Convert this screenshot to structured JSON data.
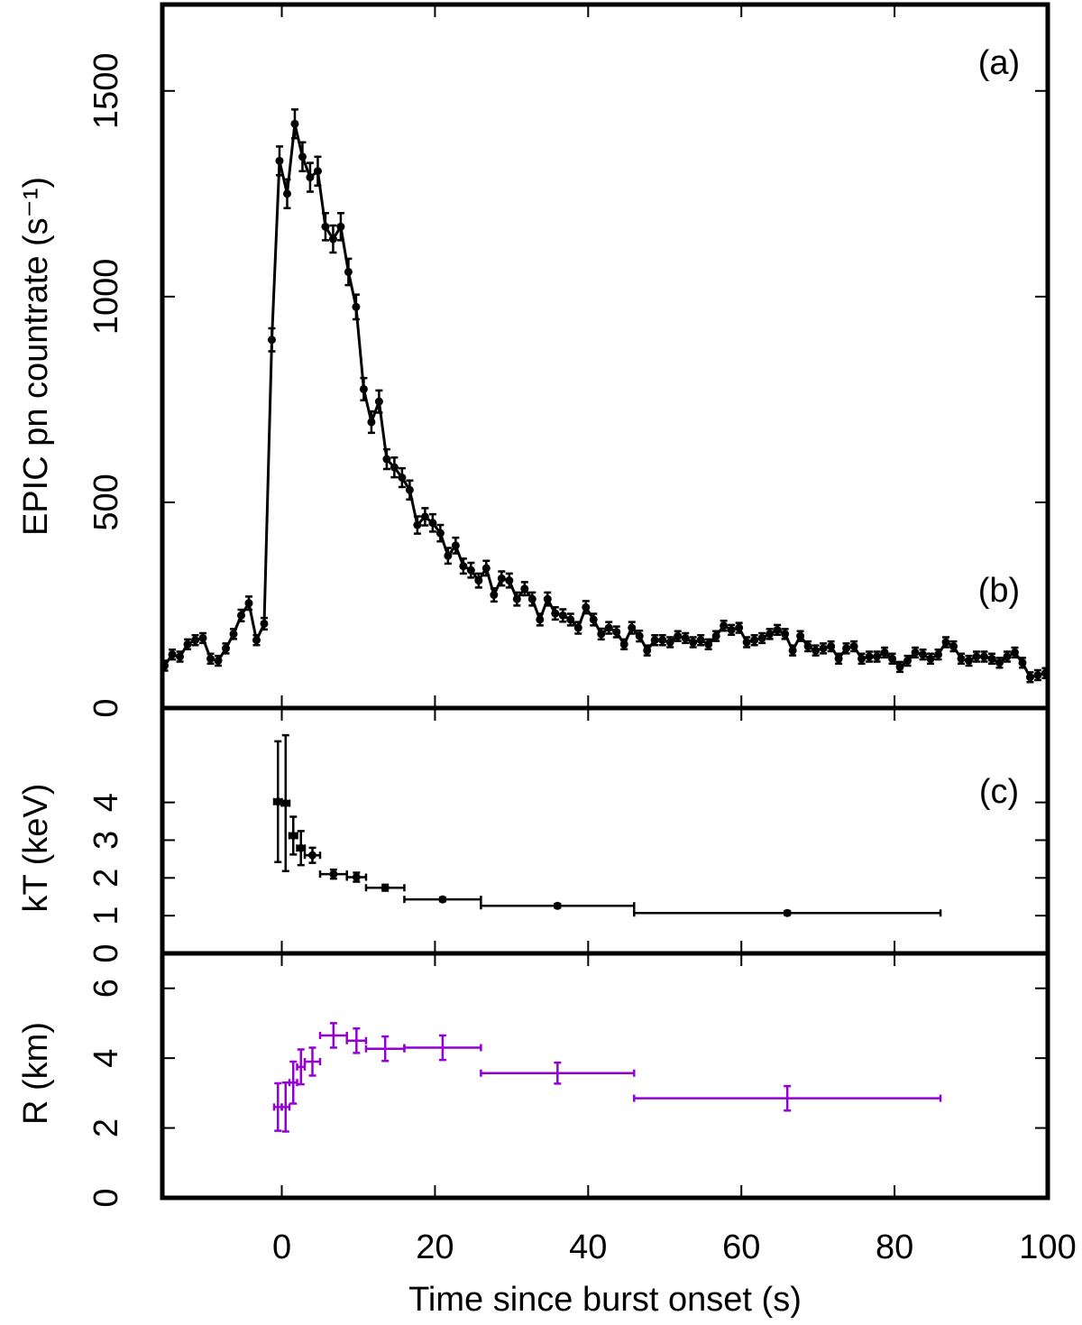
{
  "chart_data": [
    {
      "type": "line",
      "color": "#000000",
      "marker": "circle",
      "ylabel": "EPIC pn countrate (s⁻¹)",
      "annotations": [
        "(a)",
        "(b)"
      ],
      "xlim": [
        -15.6,
        100
      ],
      "xticks": [
        0,
        20,
        40,
        60,
        80,
        100
      ],
      "ylim": [
        0,
        1710
      ],
      "yticks": [
        0,
        500,
        1000,
        1500
      ],
      "x": [
        -15.3,
        -14.3,
        -13.3,
        -12.3,
        -11.3,
        -10.3,
        -9.3,
        -8.3,
        -7.3,
        -6.3,
        -5.3,
        -4.3,
        -3.3,
        -2.3,
        -1.3,
        -0.3,
        0.7,
        1.7,
        2.7,
        3.7,
        4.7,
        5.7,
        6.7,
        7.7,
        8.7,
        9.7,
        10.7,
        11.7,
        12.7,
        13.7,
        14.7,
        15.7,
        16.7,
        17.7,
        18.7,
        19.7,
        20.7,
        21.7,
        22.7,
        23.7,
        24.7,
        25.7,
        26.7,
        27.7,
        28.7,
        29.7,
        30.7,
        31.7,
        32.7,
        33.7,
        34.7,
        35.7,
        36.7,
        37.7,
        38.7,
        39.7,
        40.7,
        41.7,
        42.7,
        43.7,
        44.7,
        45.7,
        46.7,
        47.7,
        48.7,
        49.7,
        50.7,
        51.7,
        52.7,
        53.7,
        54.7,
        55.7,
        56.7,
        57.7,
        58.7,
        59.7,
        60.7,
        61.7,
        62.7,
        63.7,
        64.7,
        65.7,
        66.7,
        67.7,
        68.7,
        69.7,
        70.7,
        71.7,
        72.7,
        73.7,
        74.7,
        75.7,
        76.7,
        77.7,
        78.7,
        79.7,
        80.7,
        81.7,
        82.7,
        83.7,
        84.7,
        85.7,
        86.7,
        87.7,
        88.7,
        89.7,
        90.7,
        91.7,
        92.7,
        93.7,
        94.7,
        95.7,
        96.7,
        97.7,
        98.7,
        99.7
      ],
      "values": [
        103,
        130,
        125,
        155,
        165,
        170,
        120,
        115,
        145,
        180,
        225,
        255,
        165,
        205,
        895,
        1330,
        1250,
        1420,
        1340,
        1290,
        1305,
        1170,
        1140,
        1170,
        1060,
        975,
        775,
        695,
        745,
        605,
        585,
        560,
        530,
        445,
        465,
        450,
        425,
        370,
        395,
        345,
        335,
        310,
        340,
        275,
        315,
        310,
        265,
        290,
        265,
        215,
        265,
        230,
        225,
        215,
        195,
        245,
        215,
        180,
        195,
        185,
        155,
        195,
        175,
        140,
        165,
        165,
        160,
        175,
        170,
        160,
        165,
        155,
        175,
        200,
        190,
        195,
        160,
        165,
        170,
        180,
        190,
        180,
        140,
        175,
        150,
        140,
        145,
        150,
        120,
        145,
        150,
        120,
        125,
        125,
        135,
        120,
        100,
        115,
        135,
        130,
        120,
        130,
        160,
        150,
        120,
        115,
        125,
        125,
        120,
        110,
        125,
        135,
        110,
        75,
        80,
        85
      ],
      "errors": [
        12,
        12,
        12,
        12,
        12,
        12,
        12,
        12,
        12,
        12,
        14,
        16,
        12,
        14,
        28,
        35,
        35,
        35,
        35,
        35,
        35,
        33,
        33,
        33,
        32,
        30,
        27,
        26,
        27,
        24,
        24,
        23,
        23,
        21,
        21,
        21,
        20,
        19,
        19,
        18,
        18,
        17,
        18,
        16,
        17,
        17,
        16,
        16,
        16,
        14,
        16,
        15,
        15,
        14,
        14,
        15,
        14,
        13,
        14,
        13,
        12,
        14,
        13,
        12,
        12,
        12,
        12,
        12,
        12,
        12,
        12,
        12,
        12,
        12,
        12,
        12,
        12,
        12,
        12,
        12,
        12,
        12,
        12,
        12,
        12,
        12,
        12,
        12,
        12,
        12,
        12,
        12,
        12,
        12,
        12,
        12,
        12,
        12,
        12,
        12,
        12,
        12,
        12,
        12,
        12,
        12,
        12,
        12,
        12,
        12,
        12,
        12,
        12,
        12,
        12,
        12
      ]
    },
    {
      "type": "errorbar",
      "color": "#000000",
      "marker": "circle",
      "ylabel": "kT (keV)",
      "annotations": [
        "(c)"
      ],
      "xlim": [
        -15.6,
        100
      ],
      "xticks": [
        0,
        20,
        40,
        60,
        80,
        100
      ],
      "ylim": [
        0,
        6.5
      ],
      "yticks": [
        0,
        1,
        2,
        3,
        4
      ],
      "x": [
        -0.5,
        0.5,
        1.5,
        2.5,
        4,
        6.75,
        9.75,
        13.5,
        21,
        36,
        66
      ],
      "xerr": [
        0.5,
        0.5,
        0.5,
        0.5,
        1,
        1.75,
        1.25,
        2.5,
        5,
        10,
        20
      ],
      "values": [
        4.02,
        3.98,
        3.12,
        2.79,
        2.6,
        2.1,
        2.02,
        1.74,
        1.43,
        1.26,
        1.07
      ],
      "errors": [
        1.6,
        1.8,
        0.5,
        0.45,
        0.2,
        0.12,
        0.12,
        0.08,
        0.05,
        0.05,
        0.05
      ]
    },
    {
      "type": "errorbar",
      "color": "#9400d3",
      "marker": "none",
      "ylabel": "R (km)",
      "xlabel": "Time since burst onset (s)",
      "xlim": [
        -15.6,
        100
      ],
      "xticks": [
        0,
        20,
        40,
        60,
        80,
        100
      ],
      "ylim": [
        0,
        7
      ],
      "yticks": [
        0,
        2,
        4,
        6
      ],
      "x": [
        -0.5,
        0.5,
        1.5,
        2.5,
        4,
        6.75,
        9.75,
        13.5,
        21,
        36,
        66
      ],
      "xerr": [
        0.5,
        0.5,
        0.5,
        0.5,
        1,
        1.75,
        1.25,
        2.5,
        5,
        10,
        20
      ],
      "values": [
        2.6,
        2.6,
        3.3,
        3.75,
        3.9,
        4.65,
        4.5,
        4.27,
        4.3,
        3.57,
        2.85
      ],
      "errors": [
        0.68,
        0.7,
        0.6,
        0.5,
        0.4,
        0.35,
        0.35,
        0.35,
        0.35,
        0.3,
        0.35
      ]
    }
  ]
}
